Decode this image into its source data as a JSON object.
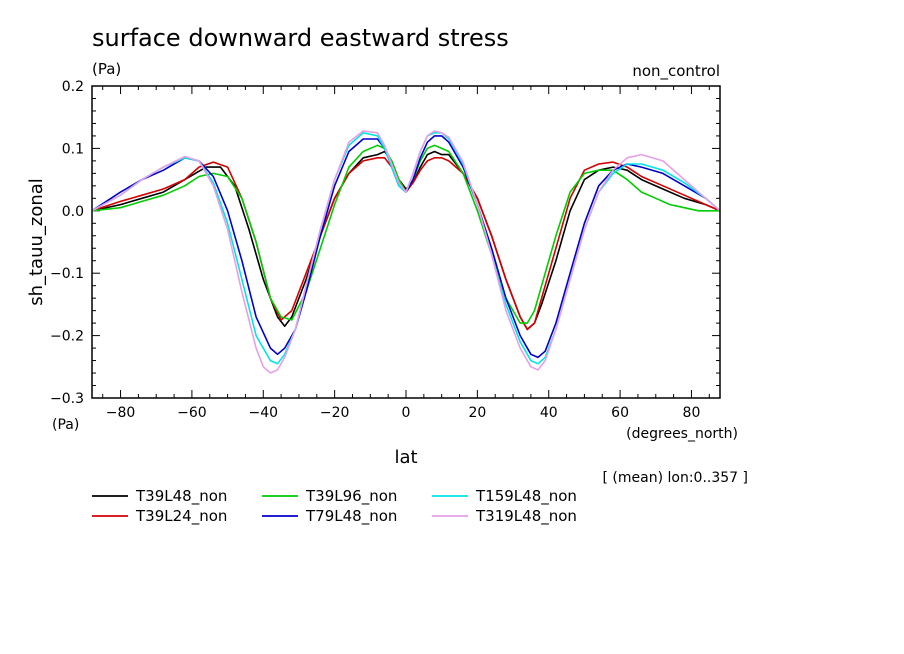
{
  "chart_data": {
    "type": "line",
    "title": "surface downward eastward stress",
    "units_label": "(Pa)",
    "corner_label": "non_control",
    "xlabel": "lat",
    "x_units": "(degrees_north)",
    "ylabel": "sh_tauu_zonal",
    "y_units": "(Pa)",
    "mean_note": "[ (mean) lon:0..357 ]",
    "xlim": [
      -88,
      88
    ],
    "ylim": [
      -0.3,
      0.2
    ],
    "x_ticks": [
      -80,
      -60,
      -40,
      -20,
      0,
      20,
      40,
      60,
      80
    ],
    "x_tick_labels": [
      "−80",
      "−60",
      "−40",
      "−20",
      "0",
      "20",
      "40",
      "60",
      "80"
    ],
    "y_ticks": [
      -0.3,
      -0.2,
      -0.1,
      0.0,
      0.1,
      0.2
    ],
    "y_tick_labels": [
      "−0.3",
      "−0.2",
      "−0.1",
      "0.0",
      "0.1",
      "0.2"
    ],
    "grid": false,
    "legend_position": "bottom-left",
    "series": [
      {
        "name": "T39L48_non",
        "color": "#000000",
        "x": [
          -88,
          -80,
          -74,
          -68,
          -62,
          -56,
          -52,
          -48,
          -44,
          -40,
          -36,
          -34,
          -32,
          -28,
          -24,
          -20,
          -16,
          -12,
          -8,
          -6,
          -4,
          -2,
          0,
          2,
          4,
          6,
          8,
          10,
          12,
          16,
          20,
          24,
          28,
          32,
          34,
          36,
          38,
          42,
          46,
          50,
          54,
          58,
          62,
          66,
          72,
          78,
          84,
          88
        ],
        "y": [
          0.0,
          0.01,
          0.02,
          0.03,
          0.05,
          0.07,
          0.07,
          0.04,
          -0.03,
          -0.11,
          -0.17,
          -0.185,
          -0.17,
          -0.11,
          -0.04,
          0.02,
          0.06,
          0.085,
          0.09,
          0.095,
          0.08,
          0.05,
          0.035,
          0.045,
          0.07,
          0.09,
          0.095,
          0.09,
          0.09,
          0.06,
          0.02,
          -0.04,
          -0.11,
          -0.17,
          -0.19,
          -0.18,
          -0.15,
          -0.08,
          0.0,
          0.05,
          0.065,
          0.07,
          0.065,
          0.05,
          0.035,
          0.02,
          0.01,
          0.0
        ]
      },
      {
        "name": "T39L24_non",
        "color": "#d40000",
        "x": [
          -88,
          -80,
          -74,
          -68,
          -62,
          -58,
          -54,
          -50,
          -46,
          -42,
          -38,
          -35,
          -32,
          -28,
          -24,
          -20,
          -16,
          -12,
          -8,
          -6,
          -4,
          -2,
          0,
          2,
          4,
          6,
          8,
          10,
          12,
          16,
          20,
          24,
          28,
          32,
          34,
          36,
          38,
          42,
          46,
          50,
          54,
          58,
          62,
          66,
          72,
          78,
          84,
          88
        ],
        "y": [
          0.0,
          0.015,
          0.025,
          0.035,
          0.05,
          0.07,
          0.078,
          0.07,
          0.02,
          -0.05,
          -0.14,
          -0.175,
          -0.16,
          -0.1,
          -0.04,
          0.02,
          0.06,
          0.08,
          0.085,
          0.085,
          0.07,
          0.05,
          0.03,
          0.045,
          0.065,
          0.08,
          0.085,
          0.085,
          0.08,
          0.06,
          0.02,
          -0.04,
          -0.11,
          -0.17,
          -0.19,
          -0.18,
          -0.14,
          -0.06,
          0.02,
          0.065,
          0.075,
          0.078,
          0.07,
          0.055,
          0.04,
          0.025,
          0.01,
          0.0
        ]
      },
      {
        "name": "T39L96_non",
        "color": "#00cc00",
        "x": [
          -88,
          -80,
          -74,
          -68,
          -62,
          -58,
          -54,
          -50,
          -46,
          -42,
          -38,
          -35,
          -32,
          -28,
          -24,
          -20,
          -16,
          -12,
          -8,
          -6,
          -4,
          -2,
          0,
          2,
          4,
          6,
          8,
          10,
          12,
          16,
          20,
          24,
          28,
          32,
          34,
          36,
          38,
          42,
          46,
          50,
          54,
          58,
          62,
          66,
          70,
          74,
          78,
          82,
          88
        ],
        "y": [
          0.0,
          0.005,
          0.015,
          0.025,
          0.04,
          0.055,
          0.06,
          0.055,
          0.02,
          -0.05,
          -0.14,
          -0.17,
          -0.175,
          -0.13,
          -0.06,
          0.01,
          0.07,
          0.095,
          0.105,
          0.1,
          0.08,
          0.05,
          0.03,
          0.05,
          0.08,
          0.1,
          0.105,
          0.1,
          0.095,
          0.06,
          0.0,
          -0.07,
          -0.14,
          -0.18,
          -0.18,
          -0.16,
          -0.12,
          -0.04,
          0.03,
          0.06,
          0.065,
          0.065,
          0.05,
          0.03,
          0.02,
          0.01,
          0.005,
          0.0,
          0.0
        ]
      },
      {
        "name": "T79L48_non",
        "color": "#0000cc",
        "x": [
          -88,
          -80,
          -74,
          -68,
          -62,
          -58,
          -54,
          -50,
          -46,
          -42,
          -38,
          -36,
          -34,
          -31,
          -28,
          -24,
          -20,
          -16,
          -12,
          -8,
          -6,
          -4,
          -2,
          0,
          2,
          4,
          6,
          8,
          10,
          12,
          16,
          20,
          24,
          28,
          32,
          35,
          37,
          39,
          42,
          46,
          50,
          54,
          58,
          62,
          66,
          72,
          78,
          84,
          88
        ],
        "y": [
          0.0,
          0.03,
          0.05,
          0.065,
          0.085,
          0.08,
          0.055,
          0.0,
          -0.08,
          -0.17,
          -0.22,
          -0.23,
          -0.22,
          -0.19,
          -0.13,
          -0.04,
          0.04,
          0.095,
          0.115,
          0.115,
          0.1,
          0.07,
          0.04,
          0.03,
          0.05,
          0.085,
          0.11,
          0.12,
          0.12,
          0.11,
          0.07,
          0.01,
          -0.06,
          -0.14,
          -0.2,
          -0.23,
          -0.235,
          -0.225,
          -0.18,
          -0.1,
          -0.02,
          0.04,
          0.065,
          0.075,
          0.07,
          0.06,
          0.04,
          0.02,
          0.0
        ]
      },
      {
        "name": "T159L48_non",
        "color": "#00e5e5",
        "x": [
          -88,
          -80,
          -74,
          -68,
          -62,
          -58,
          -54,
          -50,
          -46,
          -42,
          -38,
          -36,
          -34,
          -31,
          -28,
          -24,
          -20,
          -16,
          -12,
          -8,
          -6,
          -4,
          -2,
          0,
          2,
          4,
          6,
          8,
          10,
          12,
          16,
          20,
          24,
          28,
          32,
          35,
          37,
          39,
          42,
          46,
          50,
          54,
          58,
          62,
          66,
          72,
          78,
          84,
          88
        ],
        "y": [
          0.0,
          0.025,
          0.05,
          0.07,
          0.085,
          0.08,
          0.045,
          -0.02,
          -0.11,
          -0.2,
          -0.24,
          -0.245,
          -0.23,
          -0.19,
          -0.12,
          -0.03,
          0.05,
          0.105,
          0.125,
          0.12,
          0.1,
          0.07,
          0.04,
          0.03,
          0.06,
          0.095,
          0.12,
          0.125,
          0.125,
          0.115,
          0.075,
          0.01,
          -0.07,
          -0.15,
          -0.21,
          -0.24,
          -0.245,
          -0.235,
          -0.19,
          -0.11,
          -0.03,
          0.03,
          0.06,
          0.075,
          0.075,
          0.065,
          0.045,
          0.02,
          0.0
        ]
      },
      {
        "name": "T319L48_non",
        "color": "#e6a0e6",
        "x": [
          -88,
          -80,
          -74,
          -68,
          -62,
          -58,
          -54,
          -50,
          -46,
          -42,
          -40,
          -38,
          -36,
          -34,
          -31,
          -28,
          -24,
          -20,
          -16,
          -12,
          -8,
          -6,
          -4,
          -2,
          0,
          2,
          4,
          6,
          8,
          10,
          12,
          16,
          20,
          24,
          28,
          32,
          35,
          37,
          39,
          42,
          46,
          50,
          54,
          58,
          62,
          66,
          72,
          78,
          84,
          88
        ],
        "y": [
          0.0,
          0.025,
          0.05,
          0.07,
          0.087,
          0.08,
          0.04,
          -0.03,
          -0.13,
          -0.22,
          -0.25,
          -0.26,
          -0.255,
          -0.235,
          -0.19,
          -0.12,
          -0.03,
          0.05,
          0.11,
          0.128,
          0.125,
          0.105,
          0.075,
          0.045,
          0.03,
          0.06,
          0.095,
          0.12,
          0.128,
          0.125,
          0.118,
          0.078,
          0.01,
          -0.07,
          -0.16,
          -0.22,
          -0.25,
          -0.255,
          -0.24,
          -0.19,
          -0.11,
          -0.03,
          0.03,
          0.065,
          0.085,
          0.09,
          0.08,
          0.05,
          0.02,
          0.0
        ]
      }
    ]
  }
}
